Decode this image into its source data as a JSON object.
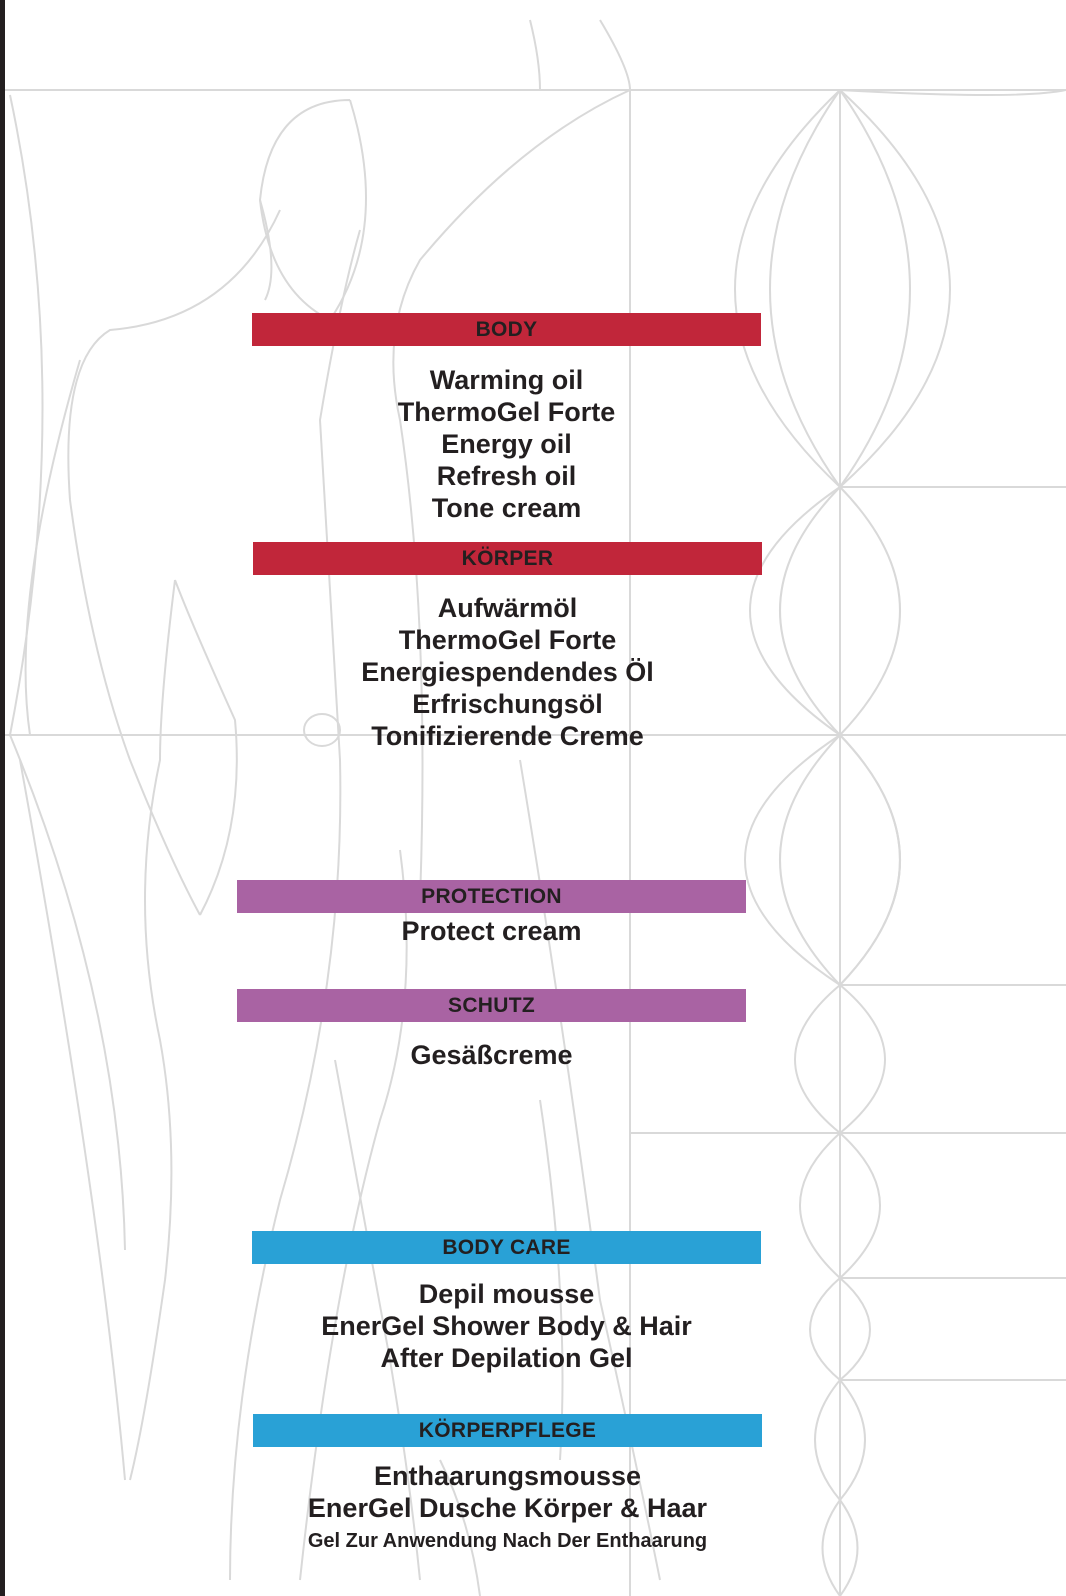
{
  "sections": [
    {
      "heading": "BODY",
      "color": "#c1263a",
      "items": [
        "Warming oil",
        "ThermoGel Forte",
        "Energy oil",
        "Refresh oil",
        "Tone cream"
      ]
    },
    {
      "heading": "KÖRPER",
      "color": "#c1263a",
      "items": [
        "Aufwärmöl",
        "ThermoGel Forte",
        "Energiespendendes Öl",
        "Erfrischungsöl",
        "Tonifizierende Creme"
      ]
    },
    {
      "heading": "PROTECTION",
      "color": "#a963a3",
      "items": [
        "Protect cream"
      ]
    },
    {
      "heading": "SCHUTZ",
      "color": "#a963a3",
      "items": [
        "Gesäßcreme"
      ]
    },
    {
      "heading": "BODY CARE",
      "color": "#29a1d6",
      "items": [
        "Depil mousse",
        "EnerGel Shower Body & Hair",
        "After Depilation Gel"
      ]
    },
    {
      "heading": "KÖRPERPFLEGE",
      "color": "#29a1d6",
      "items": [
        "Enthaarungsmousse",
        "EnerGel Dusche Körper & Haar",
        "Gel Zur Anwendung Nach Der  Enthaarung"
      ]
    }
  ]
}
